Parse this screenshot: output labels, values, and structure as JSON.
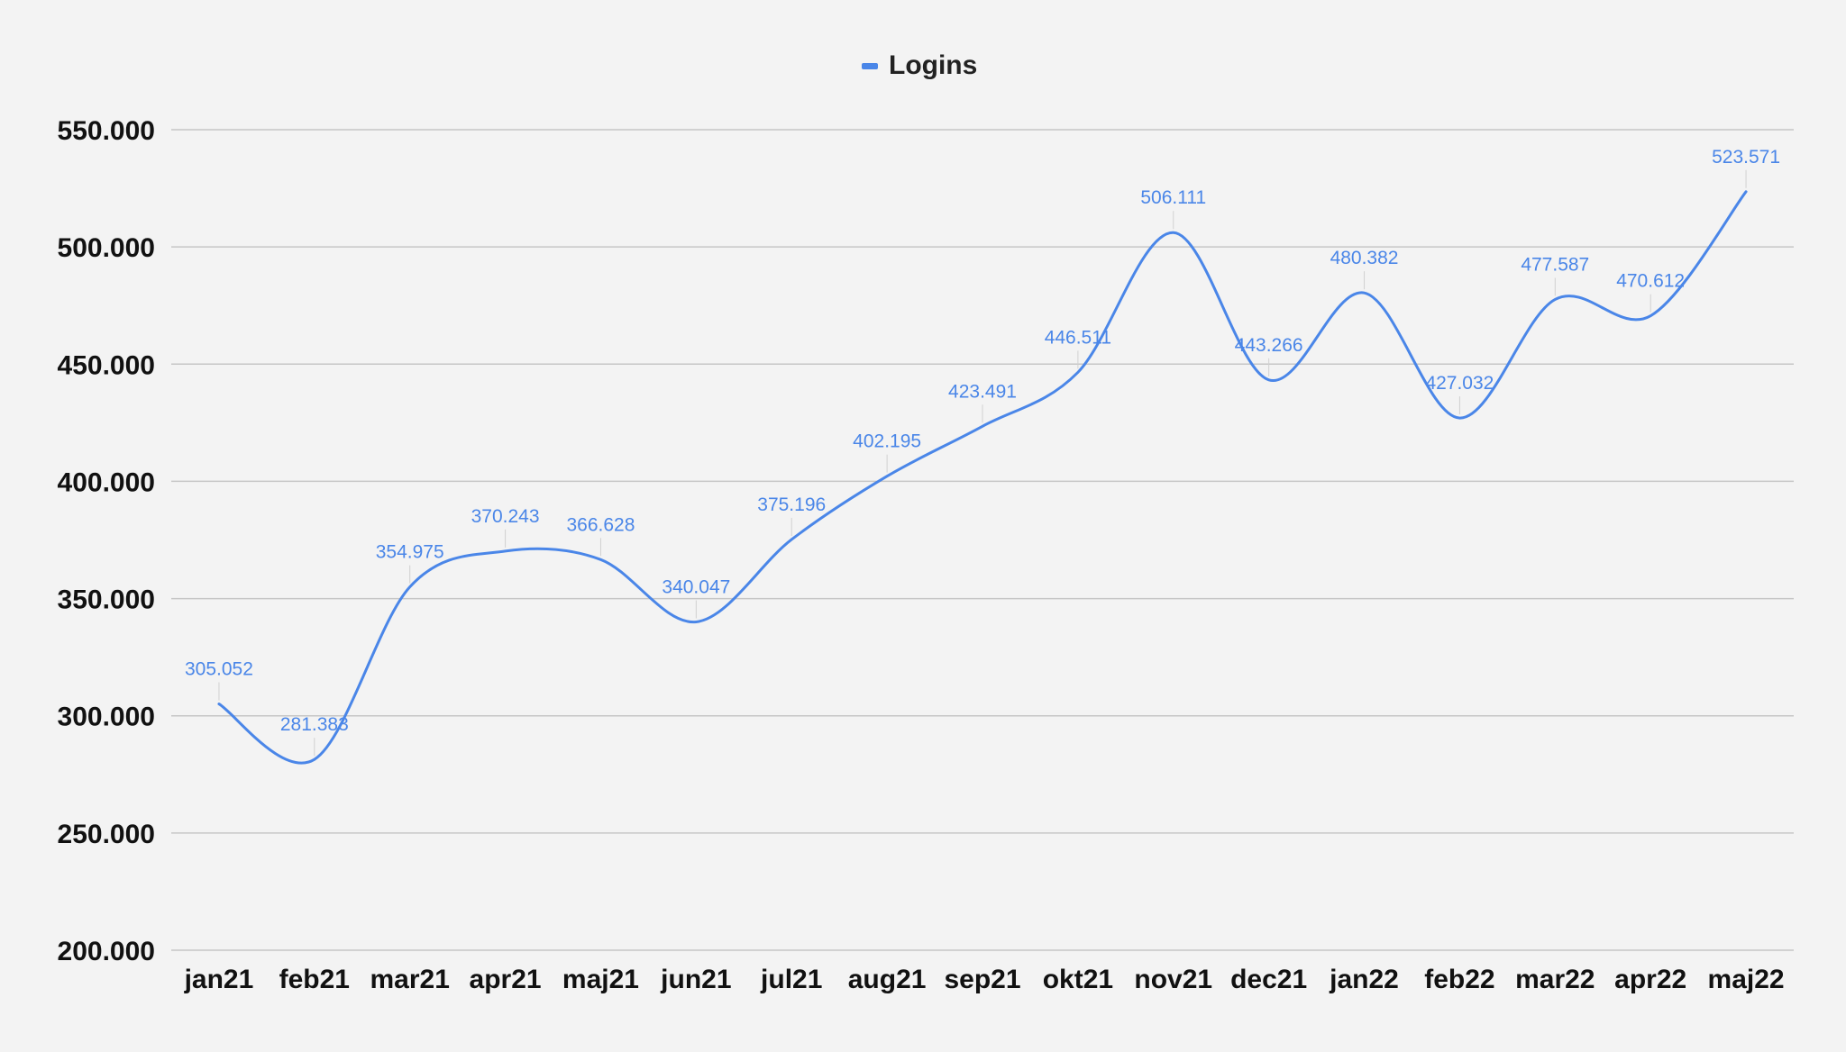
{
  "chart_data": {
    "type": "line",
    "legend": {
      "label": "Logins",
      "placement": "top-center"
    },
    "categories": [
      "jan21",
      "feb21",
      "mar21",
      "apr21",
      "maj21",
      "jun21",
      "jul21",
      "aug21",
      "sep21",
      "okt21",
      "nov21",
      "dec21",
      "jan22",
      "feb22",
      "mar22",
      "apr22",
      "maj22"
    ],
    "series": [
      {
        "name": "Logins",
        "color": "#4a86e8",
        "values": [
          305052,
          281383,
          354975,
          370243,
          366628,
          340047,
          375196,
          402195,
          423491,
          446511,
          506111,
          443266,
          480382,
          427032,
          477587,
          470612,
          523571
        ],
        "labels": [
          "305.052",
          "281.383",
          "354.975",
          "370.243",
          "366.628",
          "340.047",
          "375.196",
          "402.195",
          "423.491",
          "446.511",
          "506.111",
          "443.266",
          "480.382",
          "427.032",
          "477.587",
          "470.612",
          "523.571"
        ]
      }
    ],
    "ylim": [
      200000,
      550000
    ],
    "yticks": [
      200000,
      250000,
      300000,
      350000,
      400000,
      450000,
      500000,
      550000
    ],
    "ytick_labels": [
      "200.000",
      "250.000",
      "300.000",
      "350.000",
      "400.000",
      "450.000",
      "500.000",
      "550.000"
    ],
    "grid": true,
    "title": "",
    "xlabel": "",
    "ylabel": ""
  }
}
